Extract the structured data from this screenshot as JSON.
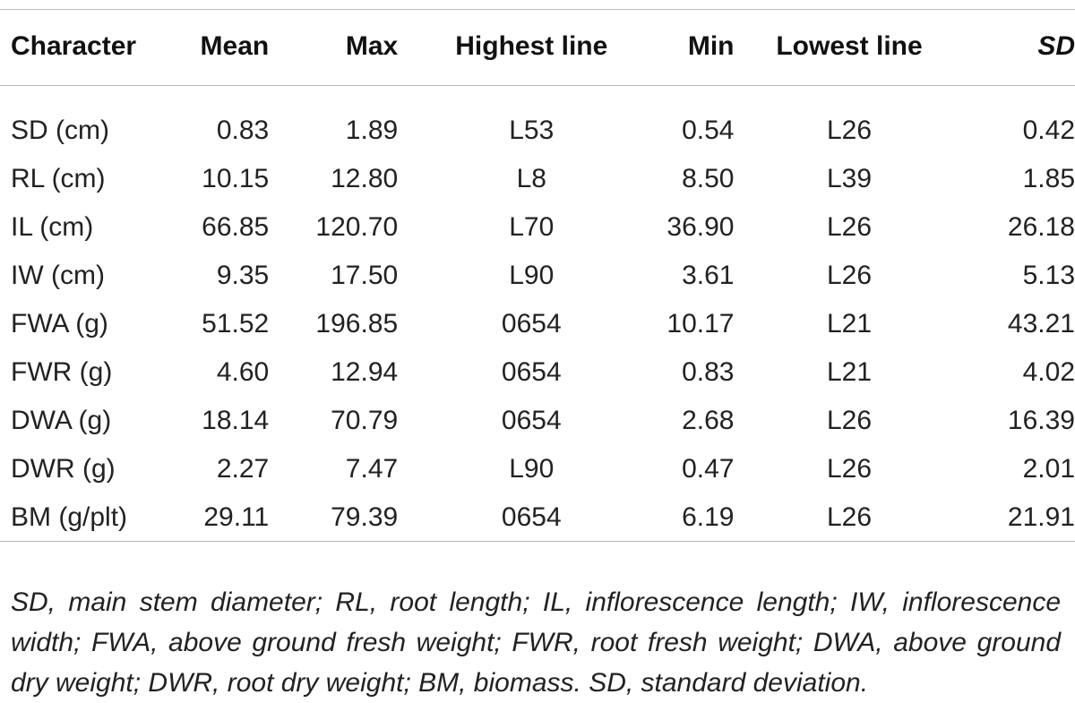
{
  "table": {
    "headers": {
      "character": "Character",
      "mean": "Mean",
      "max": "Max",
      "highest_line": "Highest line",
      "min": "Min",
      "lowest_line": "Lowest line",
      "sd": "SD"
    },
    "rows": [
      {
        "character": "SD (cm)",
        "mean": "0.83",
        "max": "1.89",
        "highest_line": "L53",
        "min": "0.54",
        "lowest_line": "L26",
        "sd": "0.42"
      },
      {
        "character": "RL (cm)",
        "mean": "10.15",
        "max": "12.80",
        "highest_line": "L8",
        "min": "8.50",
        "lowest_line": "L39",
        "sd": "1.85"
      },
      {
        "character": "IL (cm)",
        "mean": "66.85",
        "max": "120.70",
        "highest_line": "L70",
        "min": "36.90",
        "lowest_line": "L26",
        "sd": "26.18"
      },
      {
        "character": "IW (cm)",
        "mean": "9.35",
        "max": "17.50",
        "highest_line": "L90",
        "min": "3.61",
        "lowest_line": "L26",
        "sd": "5.13"
      },
      {
        "character": "FWA (g)",
        "mean": "51.52",
        "max": "196.85",
        "highest_line": "0654",
        "min": "10.17",
        "lowest_line": "L21",
        "sd": "43.21"
      },
      {
        "character": "FWR (g)",
        "mean": "4.60",
        "max": "12.94",
        "highest_line": "0654",
        "min": "0.83",
        "lowest_line": "L21",
        "sd": "4.02"
      },
      {
        "character": "DWA (g)",
        "mean": "18.14",
        "max": "70.79",
        "highest_line": "0654",
        "min": "2.68",
        "lowest_line": "L26",
        "sd": "16.39"
      },
      {
        "character": "DWR (g)",
        "mean": "2.27",
        "max": "7.47",
        "highest_line": "L90",
        "min": "0.47",
        "lowest_line": "L26",
        "sd": "2.01"
      },
      {
        "character": "BM (g/plt)",
        "mean": "29.11",
        "max": "79.39",
        "highest_line": "0654",
        "min": "6.19",
        "lowest_line": "L26",
        "sd": "21.91"
      }
    ]
  },
  "footnote": "SD, main stem diameter; RL, root length; IL, inflorescence length; IW, inflorescence width; FWA, above ground fresh weight; FWR, root fresh weight; DWA, above ground dry weight; DWR, root dry weight; BM, biomass. SD, standard deviation."
}
